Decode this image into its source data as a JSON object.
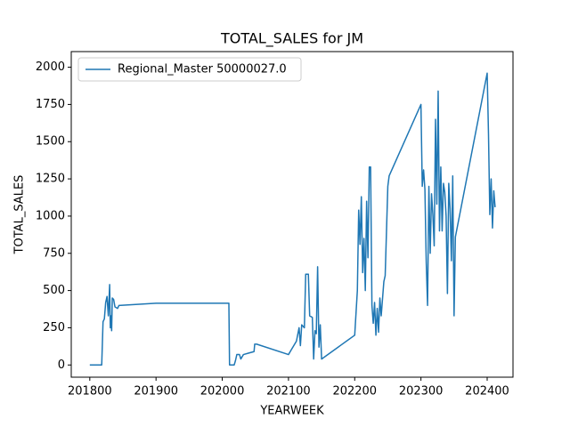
{
  "chart_data": {
    "type": "line",
    "title": "TOTAL_SALES for JM",
    "x_label": "YEARWEEK",
    "y_label": "TOTAL_SALES",
    "x": [
      201800,
      201818,
      201820,
      201822,
      201824,
      201826,
      201828,
      201830,
      201831,
      201832,
      201833,
      201834,
      201836,
      201838,
      201842,
      201844,
      201900,
      202010,
      202011,
      202018,
      202020,
      202022,
      202026,
      202028,
      202032,
      202040,
      202048,
      202049,
      202052,
      202100,
      202104,
      202108,
      202112,
      202116,
      202118,
      202120,
      202124,
      202126,
      202130,
      202132,
      202136,
      202138,
      202140,
      202142,
      202144,
      202146,
      202148,
      202150,
      202200,
      202204,
      202206,
      202208,
      202210,
      202212,
      202214,
      202216,
      202218,
      202220,
      202222,
      202224,
      202226,
      202228,
      202230,
      202232,
      202234,
      202236,
      202238,
      202240,
      202244,
      202246,
      202250,
      202252,
      202300,
      202302,
      202304,
      202306,
      202308,
      202310,
      202312,
      202314,
      202316,
      202318,
      202320,
      202322,
      202324,
      202326,
      202328,
      202330,
      202332,
      202334,
      202336,
      202338,
      202340,
      202342,
      202344,
      202346,
      202348,
      202350,
      202352,
      202400,
      202402,
      202404,
      202406,
      202408,
      202410,
      202412
    ],
    "series": [
      {
        "name": "Regional_Master 50000027.0",
        "color": "#1f77b4",
        "values": [
          0,
          0,
          290,
          310,
          420,
          460,
          330,
          540,
          250,
          330,
          230,
          450,
          440,
          390,
          380,
          400,
          415,
          415,
          0,
          0,
          30,
          70,
          70,
          40,
          70,
          80,
          90,
          140,
          140,
          70,
          100,
          130,
          160,
          250,
          130,
          270,
          250,
          610,
          610,
          330,
          320,
          40,
          230,
          210,
          660,
          120,
          270,
          40,
          200,
          500,
          1040,
          810,
          1130,
          620,
          850,
          500,
          1100,
          720,
          1330,
          1330,
          400,
          280,
          420,
          200,
          380,
          220,
          450,
          330,
          560,
          600,
          1200,
          1270,
          1750,
          1200,
          1310,
          1180,
          690,
          400,
          1200,
          750,
          1150,
          1010,
          800,
          1650,
          1080,
          1840,
          900,
          1330,
          900,
          1220,
          1160,
          1000,
          480,
          1220,
          1050,
          700,
          1270,
          330,
          860,
          1960,
          1550,
          1010,
          1250,
          920,
          1170,
          1060
        ]
      }
    ],
    "xlim": [
      201772,
      202439
    ],
    "ylim": [
      -82,
      2105
    ],
    "xticks": [
      201800,
      201900,
      202000,
      202100,
      202200,
      202300,
      202400
    ],
    "yticks": [
      0,
      250,
      500,
      750,
      1000,
      1250,
      1500,
      1750,
      2000
    ],
    "legend": "upper left"
  }
}
